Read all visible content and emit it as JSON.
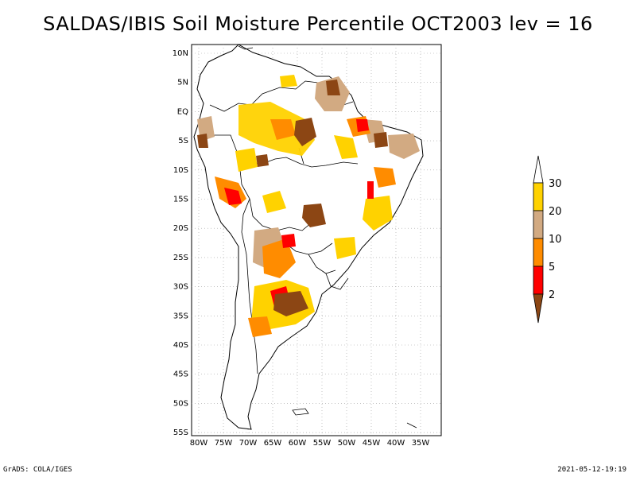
{
  "title": "SALDAS/IBIS Soil Moisture Percentile OCT2003 lev = 16",
  "footer": {
    "left": "GrADS: COLA/IGES",
    "right": "2021-05-12-19:19"
  },
  "axes": {
    "lon_ticks": [
      "80W",
      "75W",
      "70W",
      "65W",
      "60W",
      "55W",
      "50W",
      "45W",
      "40W",
      "35W"
    ],
    "lat_ticks": [
      "10N",
      "5N",
      "EQ",
      "5S",
      "10S",
      "15S",
      "20S",
      "25S",
      "30S",
      "35S",
      "40S",
      "45S",
      "50S",
      "55S"
    ]
  },
  "legend": {
    "labels": [
      "30",
      "20",
      "10",
      "5",
      "2"
    ],
    "colors": {
      "above_30": "#ffffff",
      "20_30": "#ffd200",
      "10_20": "#d2aa82",
      "5_10": "#ff8c00",
      "2_5": "#ff0000",
      "below_2": "#8c4614"
    }
  },
  "chart_data": {
    "type": "heatmap",
    "variable": "Soil Moisture Percentile",
    "period": "OCT2003",
    "level": 16,
    "lon_range": [
      -80,
      -33
    ],
    "lat_range": [
      -56,
      12
    ],
    "contour_levels": [
      2,
      5,
      10,
      20,
      30
    ],
    "grid": true
  }
}
